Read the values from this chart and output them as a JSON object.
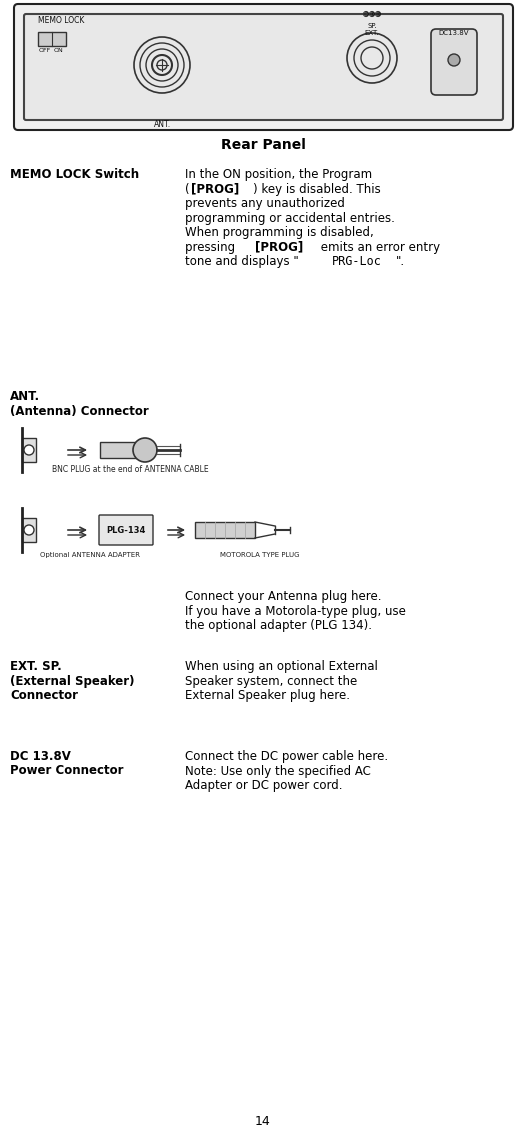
{
  "page_number": "14",
  "rear_panel_title": "Rear Panel",
  "bg_color": "#ffffff",
  "text_color": "#000000",
  "sections": [
    {
      "label": "MEMO LOCK Switch",
      "body_parts": [
        {
          "text": "In the ON position, the Program\n(",
          "bold": false
        },
        {
          "text": "[PROG]",
          "bold": true
        },
        {
          "text": ") key is disabled. This\nprevents any unauthorized\nprogramming or accidental entries.\nWhen programming is disabled,\npressing ",
          "bold": false
        },
        {
          "text": "[PROG]",
          "bold": true
        },
        {
          "text": " emits an error entry\ntone and displays \"",
          "bold": false
        },
        {
          "text": "PRG-Loc",
          "bold": false,
          "monospace": true
        },
        {
          "text": "\".",
          "bold": false
        }
      ]
    },
    {
      "label": "ANT.\n(Antenna) Connector",
      "body_parts": [
        {
          "text": "Connect your Antenna plug here.\nIf you have a Motorola-type plug, use\nthe optional adapter (PLG 134).",
          "bold": false
        }
      ]
    },
    {
      "label": "EXT. SP.\n(External Speaker)\nConnector",
      "body_parts": [
        {
          "text": "When using an optional External\nSpeaker system, connect the\nExternal Speaker plug here.",
          "bold": false
        }
      ]
    },
    {
      "label": "DC 13.8V\nPower Connector",
      "body_parts": [
        {
          "text": "Connect the DC power cable here.\nNote: Use only the specified AC\nAdapter or DC power cord.",
          "bold": false
        }
      ]
    }
  ]
}
